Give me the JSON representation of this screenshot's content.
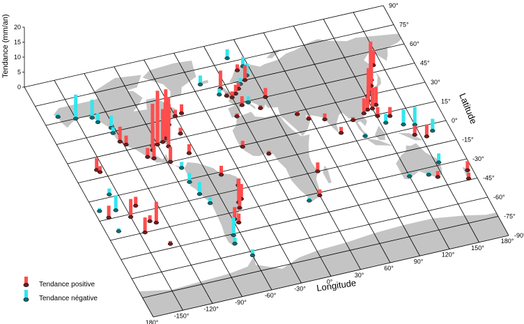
{
  "map": {
    "lon_ticks": [
      "180°",
      "-150°",
      "-120°",
      "-90°",
      "-60°",
      "-30°",
      "0°",
      "30°",
      "60°",
      "90°",
      "120°",
      "150°",
      "180°"
    ],
    "lat_ticks": [
      "-90°",
      "-75°",
      "-60°",
      "-45°",
      "-30°",
      "-15°",
      "0°",
      "15°",
      "30°",
      "45°",
      "60°",
      "75°",
      "90°"
    ],
    "lon_title": "Longitude",
    "lat_title": "Latitude",
    "z_title": "Tendance (mm/an)",
    "z_ticks": [
      "0",
      "5",
      "10",
      "15",
      "20"
    ]
  },
  "legend": {
    "positive_label": "Tendance positive",
    "negative_label": "Tendance négative",
    "positive_color": "#ff4d4d",
    "negative_color": "#33e6ee"
  },
  "stations": [
    {
      "lon": 142,
      "lat": 50,
      "trend": 5
    },
    {
      "lon": 135,
      "lat": 44,
      "trend": 11
    },
    {
      "lon": 133,
      "lat": 40,
      "trend": 4
    },
    {
      "lon": 130,
      "lat": 36,
      "trend": 8
    },
    {
      "lon": 125,
      "lat": 32,
      "trend": 6
    },
    {
      "lon": 123,
      "lat": 30,
      "trend": 9
    },
    {
      "lon": 120,
      "lat": 26,
      "trend": 5
    },
    {
      "lon": 125,
      "lat": 22,
      "trend": 6
    },
    {
      "lon": 120,
      "lat": 20,
      "trend": 7
    },
    {
      "lon": 115,
      "lat": 20,
      "trend": 4
    },
    {
      "lon": 110,
      "lat": 18,
      "trend": 5
    },
    {
      "lon": 121,
      "lat": 14,
      "trend": 3
    },
    {
      "lon": 125,
      "lat": 8,
      "trend": -3
    },
    {
      "lon": 140,
      "lat": 4,
      "trend": -5
    },
    {
      "lon": 150,
      "lat": 2,
      "trend": -6
    },
    {
      "lon": 145,
      "lat": -5,
      "trend": 3
    },
    {
      "lon": 155,
      "lat": -8,
      "trend": 4
    },
    {
      "lon": 163,
      "lat": -5,
      "trend": -4
    },
    {
      "lon": 132,
      "lat": 12,
      "trend": 3
    },
    {
      "lon": 153,
      "lat": -28,
      "trend": -3
    },
    {
      "lon": 145,
      "lat": -38,
      "trend": 2
    },
    {
      "lon": 138,
      "lat": -35,
      "trend": -1
    },
    {
      "lon": 175,
      "lat": -38,
      "trend": 3
    },
    {
      "lon": 172,
      "lat": -44,
      "trend": 2
    },
    {
      "lon": 120,
      "lat": -33,
      "trend": -1
    },
    {
      "lon": 100,
      "lat": 2,
      "trend": -1
    },
    {
      "lon": 97,
      "lat": 15,
      "trend": 1
    },
    {
      "lon": 80,
      "lat": 8,
      "trend": 2
    },
    {
      "lon": 72,
      "lat": 20,
      "trend": 2
    },
    {
      "lon": 58,
      "lat": 23,
      "trend": 1
    },
    {
      "lon": 50,
      "lat": 28,
      "trend": 1
    },
    {
      "lon": 40,
      "lat": -15,
      "trend": 3
    },
    {
      "lon": 30,
      "lat": -32,
      "trend": 2
    },
    {
      "lon": 18,
      "lat": -34,
      "trend": -1
    },
    {
      "lon": 5,
      "lat": 5,
      "trend": 1
    },
    {
      "lon": -15,
      "lat": 14,
      "trend": 2
    },
    {
      "lon": -5,
      "lat": 36,
      "trend": 1
    },
    {
      "lon": 5,
      "lat": 43,
      "trend": 3
    },
    {
      "lon": 12,
      "lat": 44,
      "trend": -2
    },
    {
      "lon": 20,
      "lat": 38,
      "trend": 1
    },
    {
      "lon": 30,
      "lat": 45,
      "trend": 3
    },
    {
      "lon": 0,
      "lat": 50,
      "trend": 2
    },
    {
      "lon": -4,
      "lat": 52,
      "trend": 1
    },
    {
      "lon": 5,
      "lat": 52,
      "trend": 3
    },
    {
      "lon": 10,
      "lat": 55,
      "trend": 2
    },
    {
      "lon": 14,
      "lat": 58,
      "trend": -2
    },
    {
      "lon": 20,
      "lat": 60,
      "trend": 5
    },
    {
      "lon": 24,
      "lat": 63,
      "trend": -4
    },
    {
      "lon": 18,
      "lat": 68,
      "trend": 2
    },
    {
      "lon": 25,
      "lat": 70,
      "trend": -3
    },
    {
      "lon": -10,
      "lat": 54,
      "trend": -2
    },
    {
      "lon": -6,
      "lat": 58,
      "trend": 6
    },
    {
      "lon": -22,
      "lat": 64,
      "trend": -3
    },
    {
      "lon": 15,
      "lat": 78,
      "trend": -3
    },
    {
      "lon": -64,
      "lat": 33,
      "trend": 2
    },
    {
      "lon": -70,
      "lat": 41,
      "trend": 7
    },
    {
      "lon": -73,
      "lat": 40,
      "trend": 9
    },
    {
      "lon": -76,
      "lat": 37,
      "trend": 14
    },
    {
      "lon": -80,
      "lat": 32,
      "trend": 12
    },
    {
      "lon": -81,
      "lat": 26,
      "trend": 9
    },
    {
      "lon": -84,
      "lat": 30,
      "trend": 11
    },
    {
      "lon": -90,
      "lat": 29,
      "trend": 18
    },
    {
      "lon": -95,
      "lat": 29,
      "trend": 14
    },
    {
      "lon": -97,
      "lat": 26,
      "trend": 8
    },
    {
      "lon": -100,
      "lat": 20,
      "trend": 4
    },
    {
      "lon": -105,
      "lat": 22,
      "trend": 3
    },
    {
      "lon": -80,
      "lat": 9,
      "trend": -2
    },
    {
      "lon": -87,
      "lat": 15,
      "trend": 5
    },
    {
      "lon": -66,
      "lat": 18,
      "trend": 3
    },
    {
      "lon": -68,
      "lat": 45,
      "trend": 4
    },
    {
      "lon": -60,
      "lat": 46,
      "trend": 2
    },
    {
      "lon": -53,
      "lat": 47,
      "trend": 3
    },
    {
      "lon": -64,
      "lat": 50,
      "trend": 5
    },
    {
      "lon": -118,
      "lat": 34,
      "trend": 3
    },
    {
      "lon": -122,
      "lat": 37,
      "trend": 5
    },
    {
      "lon": -124,
      "lat": 44,
      "trend": -2
    },
    {
      "lon": -123,
      "lat": 48,
      "trend": -4
    },
    {
      "lon": -132,
      "lat": 54,
      "trend": -3
    },
    {
      "lon": -135,
      "lat": 58,
      "trend": -6
    },
    {
      "lon": -150,
      "lat": 60,
      "trend": -8
    },
    {
      "lon": -165,
      "lat": 64,
      "trend": -1
    },
    {
      "lon": -157,
      "lat": 21,
      "trend": 4
    },
    {
      "lon": -155,
      "lat": 19,
      "trend": 2
    },
    {
      "lon": -170,
      "lat": -14,
      "trend": 4
    },
    {
      "lon": -160,
      "lat": -10,
      "trend": -5
    },
    {
      "lon": -158,
      "lat": 2,
      "trend": -2
    },
    {
      "lon": -150,
      "lat": -17,
      "trend": 6
    },
    {
      "lon": -140,
      "lat": -10,
      "trend": 3
    },
    {
      "lon": -135,
      "lat": -23,
      "trend": 2
    },
    {
      "lon": -145,
      "lat": -30,
      "trend": 5
    },
    {
      "lon": -130,
      "lat": -25,
      "trend": 7
    },
    {
      "lon": -128,
      "lat": -42,
      "trend": 1
    },
    {
      "lon": -168,
      "lat": -25,
      "trend": -1
    },
    {
      "lon": -175,
      "lat": -8,
      "trend": -1
    },
    {
      "lon": -80,
      "lat": -2,
      "trend": -3
    },
    {
      "lon": -77,
      "lat": -12,
      "trend": -4
    },
    {
      "lon": -72,
      "lat": -20,
      "trend": -2
    },
    {
      "lon": -48,
      "lat": -2,
      "trend": 3
    },
    {
      "lon": -38,
      "lat": -12,
      "trend": 2
    },
    {
      "lon": -42,
      "lat": -22,
      "trend": 5
    },
    {
      "lon": -46,
      "lat": -24,
      "trend": 8
    },
    {
      "lon": -48,
      "lat": -28,
      "trend": 6
    },
    {
      "lon": -58,
      "lat": -35,
      "trend": 4
    },
    {
      "lon": -56,
      "lat": -38,
      "trend": 3
    },
    {
      "lon": -67,
      "lat": -46,
      "trend": -6
    },
    {
      "lon": -70,
      "lat": -52,
      "trend": -2
    },
    {
      "lon": -60,
      "lat": -63,
      "trend": -2
    }
  ]
}
